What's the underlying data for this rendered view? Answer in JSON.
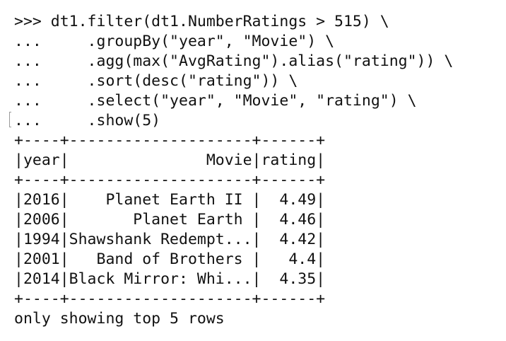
{
  "terminal": {
    "command_lines": [
      ">>> dt1.filter(dt1.NumberRatings > 515) \\",
      "...     .groupBy(\"year\", \"Movie\") \\",
      "...     .agg(max(\"AvgRating\").alias(\"rating\")) \\",
      "...     .sort(desc(\"rating\")) \\",
      "...     .select(\"year\", \"Movie\", \"rating\") \\",
      "...     .show(5)"
    ],
    "table": {
      "border_top": "+----+--------------------+------+",
      "header": "|year|               Movie|rating|",
      "border_mid": "+----+--------------------+------+",
      "rows": [
        "|2016|    Planet Earth II |  4.49|",
        "|2006|       Planet Earth |  4.46|",
        "|1994|Shawshank Redempt...|  4.42|",
        "|2001|   Band of Brothers |   4.4|",
        "|2014|Black Mirror: Whi...|  4.35|"
      ],
      "border_bottom": "+----+--------------------+------+"
    },
    "footer": "only showing top 5 rows"
  }
}
